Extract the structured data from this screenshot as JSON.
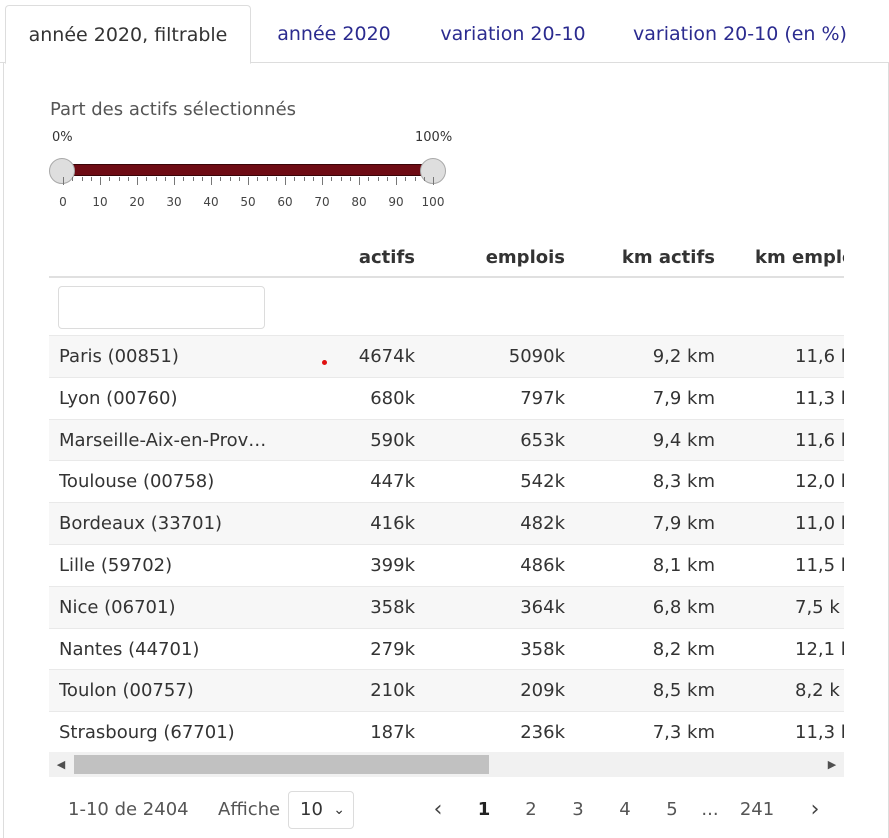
{
  "tabs": [
    {
      "label": "année 2020, filtrable",
      "active": true
    },
    {
      "label": "année 2020",
      "active": false
    },
    {
      "label": "variation 20-10",
      "active": false
    },
    {
      "label": "variation 20-10 (en %)",
      "active": false
    }
  ],
  "slider": {
    "label": "Part des actifs sélectionnés",
    "min_label": "0%",
    "max_label": "100%",
    "range": [
      0,
      100
    ],
    "selected": [
      0,
      100
    ],
    "track_color": "#6e0b14",
    "ticks": [
      "0",
      "10",
      "20",
      "30",
      "40",
      "50",
      "60",
      "70",
      "80",
      "90",
      "100"
    ]
  },
  "table": {
    "columns": [
      "",
      "actifs",
      "emplois",
      "km actifs",
      "km emplo"
    ],
    "filter_value": "",
    "rows": [
      {
        "name": "Paris (00851)",
        "actifs": "4674k",
        "emplois": "5090k",
        "km_actifs": "9,2 km",
        "km_emplois": "11,6 k"
      },
      {
        "name": "Lyon (00760)",
        "actifs": "680k",
        "emplois": "797k",
        "km_actifs": "7,9 km",
        "km_emplois": "11,3 k"
      },
      {
        "name": "Marseille-Aix-en-Prov…",
        "actifs": "590k",
        "emplois": "653k",
        "km_actifs": "9,4 km",
        "km_emplois": "11,6 k"
      },
      {
        "name": "Toulouse (00758)",
        "actifs": "447k",
        "emplois": "542k",
        "km_actifs": "8,3 km",
        "km_emplois": "12,0 k"
      },
      {
        "name": "Bordeaux (33701)",
        "actifs": "416k",
        "emplois": "482k",
        "km_actifs": "7,9 km",
        "km_emplois": "11,0 k"
      },
      {
        "name": "Lille (59702)",
        "actifs": "399k",
        "emplois": "486k",
        "km_actifs": "8,1 km",
        "km_emplois": "11,5 k"
      },
      {
        "name": "Nice (06701)",
        "actifs": "358k",
        "emplois": "364k",
        "km_actifs": "6,8 km",
        "km_emplois": "7,5 k"
      },
      {
        "name": "Nantes (44701)",
        "actifs": "279k",
        "emplois": "358k",
        "km_actifs": "8,2 km",
        "km_emplois": "12,1 k"
      },
      {
        "name": "Toulon (00757)",
        "actifs": "210k",
        "emplois": "209k",
        "km_actifs": "8,5 km",
        "km_emplois": "8,2 k"
      },
      {
        "name": "Strasbourg (67701)",
        "actifs": "187k",
        "emplois": "236k",
        "km_actifs": "7,3 km",
        "km_emplois": "11,3 k"
      }
    ]
  },
  "scrollbar": {
    "left_arrow": "◀",
    "right_arrow": "▶"
  },
  "pagination": {
    "info": "1-10 de 2404",
    "show_label": "Affiche",
    "page_size": "10",
    "page_size_chevron": "⌄",
    "prev": "‹",
    "next": "›",
    "pages": [
      "1",
      "2",
      "3",
      "4",
      "5"
    ],
    "current_page": "1",
    "ellipsis": "...",
    "last_page": "241"
  }
}
